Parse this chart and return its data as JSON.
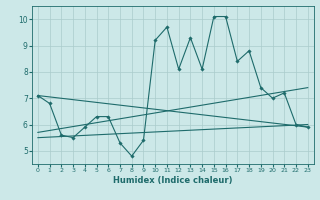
{
  "xlabel": "Humidex (Indice chaleur)",
  "xlim": [
    -0.5,
    23.5
  ],
  "ylim": [
    4.5,
    10.5
  ],
  "yticks": [
    5,
    6,
    7,
    8,
    9,
    10
  ],
  "xticks": [
    0,
    1,
    2,
    3,
    4,
    5,
    6,
    7,
    8,
    9,
    10,
    11,
    12,
    13,
    14,
    15,
    16,
    17,
    18,
    19,
    20,
    21,
    22,
    23
  ],
  "bg_color": "#cce8e8",
  "grid_color": "#aacccc",
  "line_color": "#1e6b6b",
  "main_line": {
    "x": [
      0,
      1,
      2,
      3,
      4,
      5,
      6,
      7,
      8,
      9,
      10,
      11,
      12,
      13,
      14,
      15,
      16,
      17,
      18,
      19,
      20,
      21,
      22,
      23
    ],
    "y": [
      7.1,
      6.8,
      5.6,
      5.5,
      5.9,
      6.3,
      6.3,
      5.3,
      4.8,
      5.4,
      9.2,
      9.7,
      8.1,
      9.3,
      8.1,
      10.1,
      10.1,
      8.4,
      8.8,
      7.4,
      7.0,
      7.2,
      6.0,
      5.9
    ]
  },
  "trend_lines": [
    {
      "x": [
        0,
        23
      ],
      "y": [
        7.1,
        5.9
      ]
    },
    {
      "x": [
        0,
        23
      ],
      "y": [
        5.7,
        7.4
      ]
    },
    {
      "x": [
        0,
        23
      ],
      "y": [
        5.5,
        6.0
      ]
    }
  ]
}
